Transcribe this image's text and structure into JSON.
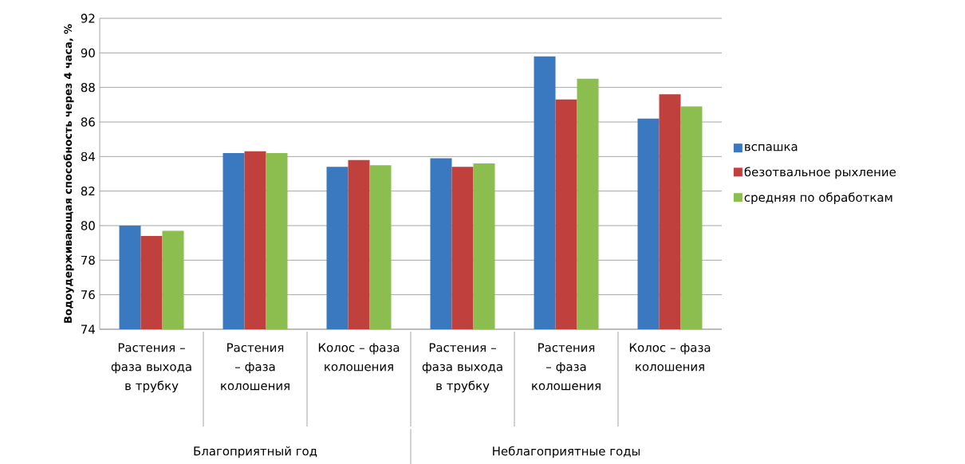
{
  "chart_data": {
    "type": "bar",
    "ylabel": "Водоудерживающая способность через 4 часа, %",
    "categories": [
      "Растения – фаза выхода в трубку",
      "Растения – фаза колошения",
      "Колос – фаза колошения",
      "Растения – фаза выхода в трубку",
      "Растения – фаза колошения",
      "Колос – фаза колошения"
    ],
    "series": [
      {
        "name": "вспашка",
        "color": "#3a78bf",
        "values": [
          80.0,
          84.2,
          83.4,
          83.9,
          89.8,
          86.2
        ]
      },
      {
        "name": "безотвальное рыхление",
        "color": "#c0403d",
        "values": [
          79.4,
          84.3,
          83.8,
          83.4,
          87.3,
          87.6
        ]
      },
      {
        "name": "средняя  по обработкам",
        "color": "#8cbd4f",
        "values": [
          79.7,
          84.2,
          83.5,
          83.6,
          88.5,
          86.9
        ]
      }
    ],
    "annotations": [
      "Благоприятный год",
      "Неблагоприятные годы"
    ],
    "ylim": [
      74,
      92
    ],
    "yticks": [
      74,
      76,
      78,
      80,
      82,
      84,
      86,
      88,
      90,
      92
    ],
    "grid": "y",
    "legend": "right"
  }
}
